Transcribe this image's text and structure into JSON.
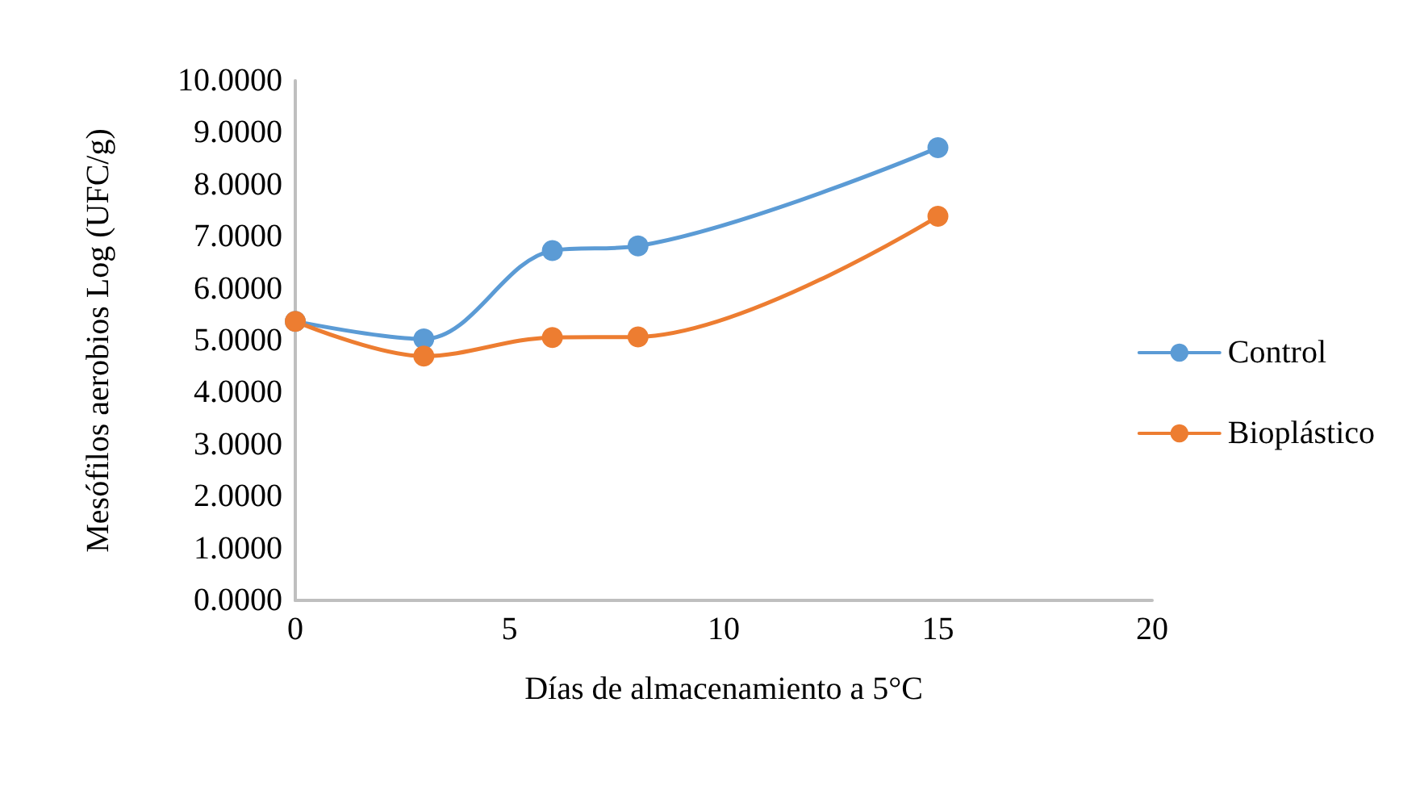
{
  "chart_data": {
    "type": "line",
    "xlabel": "Días de almacenamiento a 5°C",
    "ylabel": "Mesófilos aerobios Log (UFC/g)",
    "x": [
      0,
      3,
      6,
      8,
      15
    ],
    "series": [
      {
        "name": "Control",
        "color": "#5b9bd5",
        "values": [
          5.37,
          5.03,
          6.73,
          6.82,
          8.71
        ]
      },
      {
        "name": "Bioplástico",
        "color": "#ed7d31",
        "values": [
          5.37,
          4.7,
          5.06,
          5.07,
          7.39
        ]
      }
    ],
    "xlim": [
      0,
      20
    ],
    "xticks": [
      0,
      5,
      10,
      15,
      20
    ],
    "ylim": [
      0,
      10
    ],
    "yticks": [
      {
        "value": 0,
        "label": "0.0000"
      },
      {
        "value": 1,
        "label": "1.0000"
      },
      {
        "value": 2,
        "label": "2.0000"
      },
      {
        "value": 3,
        "label": "3.0000"
      },
      {
        "value": 4,
        "label": "4.0000"
      },
      {
        "value": 5,
        "label": "5.0000"
      },
      {
        "value": 6,
        "label": "6.0000"
      },
      {
        "value": 7,
        "label": "7.0000"
      },
      {
        "value": 8,
        "label": "8.0000"
      },
      {
        "value": 9,
        "label": "9.0000"
      },
      {
        "value": 10,
        "label": "10.0000"
      }
    ],
    "grid": false,
    "legend": "right",
    "marker": "circle",
    "line_style": "solid"
  }
}
